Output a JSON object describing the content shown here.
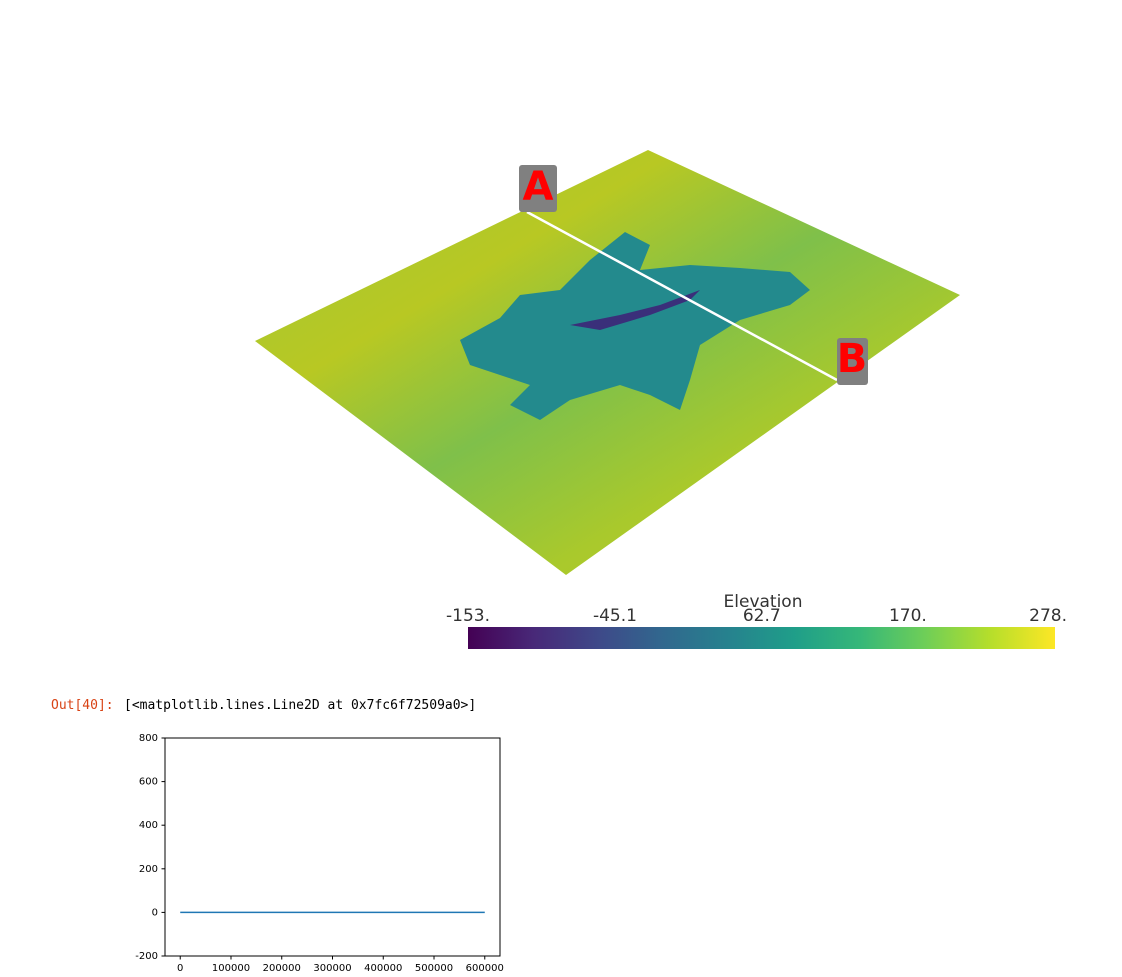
{
  "render": {
    "markers": [
      "A",
      "B"
    ],
    "colorbar": {
      "title": "Elevation",
      "lim": [
        -153,
        278
      ],
      "ticks": [
        {
          "value": -153,
          "label": "-153."
        },
        -45.1,
        62.7,
        {
          "value": 170,
          "label": "170."
        },
        {
          "value": 278,
          "label": "278."
        }
      ],
      "colors": [
        "#440154",
        "#482878",
        "#3e4989",
        "#31688e",
        "#26828e",
        "#1f9e89",
        "#35b779",
        "#6ece58",
        "#b5de2b",
        "#fde725"
      ]
    }
  },
  "output": {
    "prompt": "Out[40]:",
    "text": "[<matplotlib.lines.Line2D at 0x7fc6f72509a0>]"
  },
  "chart_data": {
    "type": "line",
    "x": [
      0,
      100000,
      200000,
      300000,
      400000,
      500000,
      600000
    ],
    "series": [
      {
        "color": "#1f77b4",
        "values": [
          0,
          0,
          0,
          0,
          0,
          0,
          0
        ]
      }
    ],
    "xlim": [
      -30000,
      630000
    ],
    "ylim": [
      -200,
      800
    ],
    "xticks": [
      0,
      100000,
      200000,
      300000,
      400000,
      500000,
      600000
    ],
    "yticks": [
      -200,
      0,
      200,
      400,
      600,
      800
    ]
  }
}
